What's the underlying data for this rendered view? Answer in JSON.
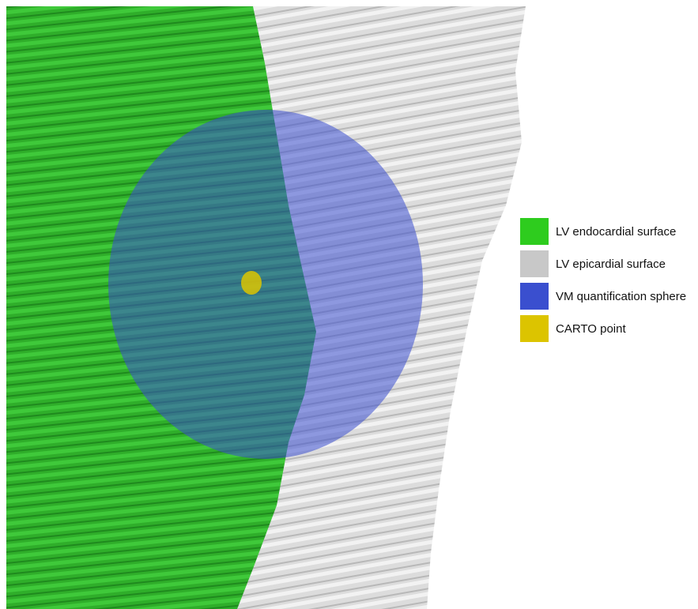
{
  "legend": {
    "items": [
      {
        "label": "LV endocardial surface",
        "color": "#2ecc1e"
      },
      {
        "label": "LV epicardial surface",
        "color": "#c8c8c8"
      },
      {
        "label": "VM quantification sphere",
        "color": "#3a4fcf"
      },
      {
        "label": "CARTO point",
        "color": "#dcc400"
      }
    ]
  }
}
